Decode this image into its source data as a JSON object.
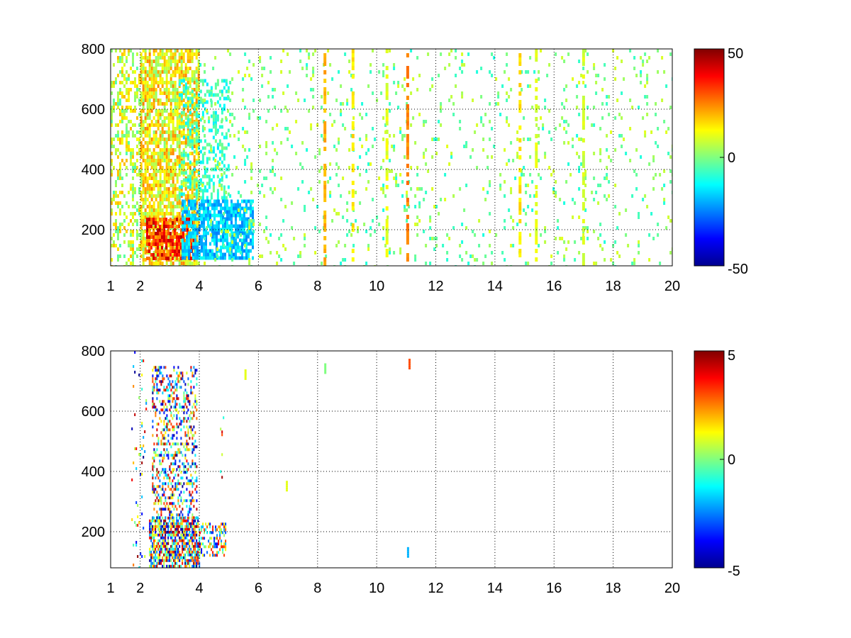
{
  "chart_data": [
    {
      "type": "heatmap",
      "x_ticks": [
        1,
        2,
        4,
        6,
        8,
        10,
        12,
        14,
        16,
        18,
        20
      ],
      "y_ticks": [
        200,
        400,
        600,
        800
      ],
      "xlim": [
        1,
        20
      ],
      "ylim": [
        80,
        800
      ],
      "grid": true,
      "colormap": "jet",
      "colorbar": {
        "min": -50,
        "max": 50,
        "ticks": [
          -50,
          0,
          50
        ],
        "position": "right"
      },
      "x_tick_labels": [
        "1",
        "2",
        "4",
        "6",
        "8",
        "10",
        "12",
        "14",
        "16",
        "18",
        "20"
      ],
      "y_tick_labels": [
        "200",
        "400",
        "600",
        "800"
      ],
      "colorbar_tick_labels": [
        "50",
        "0",
        "-50"
      ],
      "regions": [
        {
          "x": [
            2.0,
            4.0
          ],
          "y": [
            80,
            800
          ],
          "value_range": [
            0,
            25
          ],
          "density": "dense"
        },
        {
          "x": [
            2.2,
            3.8
          ],
          "y": [
            100,
            240
          ],
          "value_range": [
            20,
            45
          ],
          "density": "dense"
        },
        {
          "x": [
            3.4,
            5.8
          ],
          "y": [
            100,
            300
          ],
          "value_range": [
            -25,
            -10
          ],
          "density": "dense"
        },
        {
          "x": [
            3.3,
            5.0
          ],
          "y": [
            300,
            700
          ],
          "value_range": [
            -15,
            0
          ],
          "density": "medium"
        },
        {
          "x": [
            1.0,
            2.0
          ],
          "y": [
            80,
            800
          ],
          "value_range": [
            -5,
            20
          ],
          "density": "medium"
        },
        {
          "x": [
            4.0,
            20.0
          ],
          "y": [
            80,
            800
          ],
          "value_range": [
            -10,
            10
          ],
          "density": "sparse"
        }
      ],
      "bands": [
        {
          "x": 8.25,
          "value": 20
        },
        {
          "x": 9.2,
          "value": 15
        },
        {
          "x": 11.05,
          "value": 25
        },
        {
          "x": 10.35,
          "value": 10
        },
        {
          "x": 14.85,
          "value": 15
        },
        {
          "x": 15.4,
          "value": 10
        },
        {
          "x": 17.0,
          "value": 8
        }
      ]
    },
    {
      "type": "heatmap",
      "x_ticks": [
        1,
        2,
        4,
        6,
        8,
        10,
        12,
        14,
        16,
        18,
        20
      ],
      "y_ticks": [
        200,
        400,
        600,
        800
      ],
      "xlim": [
        1,
        20
      ],
      "ylim": [
        80,
        800
      ],
      "grid": true,
      "colormap": "jet",
      "colorbar": {
        "min": -5,
        "max": 5,
        "ticks": [
          -5,
          0,
          5
        ],
        "position": "right"
      },
      "x_tick_labels": [
        "1",
        "2",
        "4",
        "6",
        "8",
        "10",
        "12",
        "14",
        "16",
        "18",
        "20"
      ],
      "y_tick_labels": [
        "200",
        "400",
        "600",
        "800"
      ],
      "colorbar_tick_labels": [
        "5",
        "0",
        "-5"
      ],
      "regions": [
        {
          "x": [
            2.3,
            4.0
          ],
          "y": [
            80,
            250
          ],
          "value_range": [
            -5,
            5
          ],
          "density": "dense"
        },
        {
          "x": [
            2.4,
            3.9
          ],
          "y": [
            250,
            750
          ],
          "value_range": [
            -5,
            5
          ],
          "density": "medium"
        },
        {
          "x": [
            1.7,
            2.2
          ],
          "y": [
            80,
            800
          ],
          "value_range": [
            -5,
            5
          ],
          "density": "sparse"
        },
        {
          "x": [
            4.0,
            4.9
          ],
          "y": [
            120,
            230
          ],
          "value_range": [
            -4,
            4
          ],
          "density": "medium"
        },
        {
          "x": [
            4.7,
            4.8
          ],
          "y": [
            380,
            630
          ],
          "value_range": [
            -5,
            5
          ],
          "density": "sparse"
        }
      ],
      "points": [
        {
          "x": 5.55,
          "y": 720,
          "value": 1
        },
        {
          "x": 6.95,
          "y": 350,
          "value": 1
        },
        {
          "x": 8.25,
          "y": 740,
          "value": 0
        },
        {
          "x": 11.1,
          "y": 755,
          "value": 3
        },
        {
          "x": 11.05,
          "y": 130,
          "value": -2
        }
      ]
    }
  ]
}
